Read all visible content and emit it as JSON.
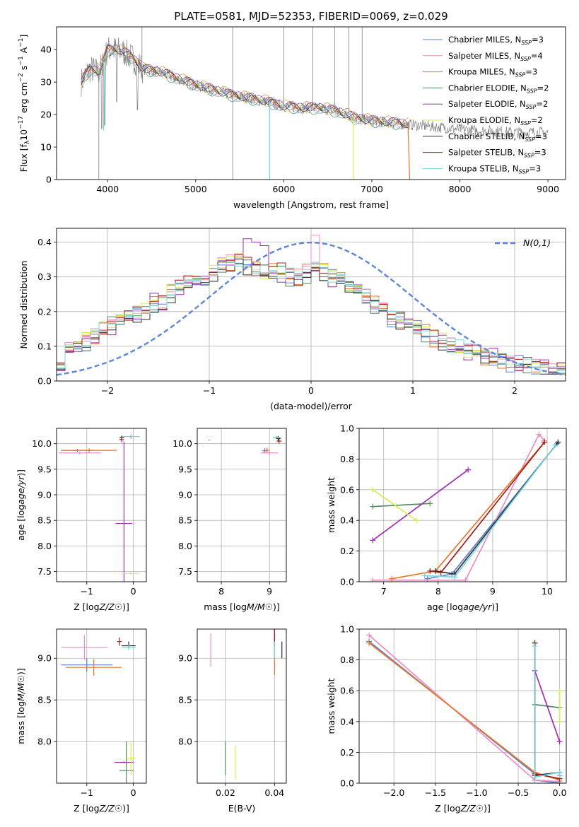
{
  "figure": {
    "title": "PLATE=0581, MJD=52353, FIBERID=0069, z=0.029",
    "models": [
      {
        "label": "Chabrier MILES, N",
        "sub": "SSP",
        "eq": "=3",
        "color": "#5b7fd6"
      },
      {
        "label": "Salpeter MILES, N",
        "sub": "SSP",
        "eq": "=4",
        "color": "#e88ec1"
      },
      {
        "label": "Kroupa MILES, N",
        "sub": "SSP",
        "eq": "=3",
        "color": "#c8892b"
      },
      {
        "label": "Chabrier ELODIE, N",
        "sub": "SSP",
        "eq": "=2",
        "color": "#4d8a5c"
      },
      {
        "label": "Salpeter ELODIE, N",
        "sub": "SSP",
        "eq": "=2",
        "color": "#9c2fb3"
      },
      {
        "label": "Kroupa ELODIE, N",
        "sub": "SSP",
        "eq": "=2",
        "color": "#d8ec4b"
      },
      {
        "label": "Chabrier STELIB, N",
        "sub": "SSP",
        "eq": "=3",
        "color": "#2e2e2e"
      },
      {
        "label": "Salpeter STELIB, N",
        "sub": "SSP",
        "eq": "=3",
        "color": "#a31a1a"
      },
      {
        "label": "Kroupa STELIB, N",
        "sub": "SSP",
        "eq": "=3",
        "color": "#74d6d6"
      }
    ],
    "data_color": "#808080",
    "orange": "#e8762b"
  },
  "chart_data": [
    {
      "id": "spectrum",
      "type": "line",
      "xlabel": "wavelength [Angstrom, rest frame]",
      "ylabel": "Flux [f_λ 10^-17 erg cm^-2 s^-1 A^-1]",
      "xlim": [
        3420,
        9200
      ],
      "ylim": [
        0,
        47
      ],
      "xticks": [
        4000,
        5000,
        6000,
        7000,
        8000,
        9000
      ],
      "yticks": [
        0,
        10,
        20,
        30,
        40
      ],
      "continuum_x": [
        3700,
        3800,
        3900,
        3950,
        4000,
        4100,
        4200,
        4300,
        4400,
        4600,
        4800,
        5000,
        5200,
        5400,
        5600,
        5800,
        6000,
        6200,
        6400,
        6600,
        6800,
        7000,
        7200,
        7400,
        7600,
        7800,
        8000,
        8200,
        8400,
        8600,
        8800,
        9000
      ],
      "continuum_y": [
        30,
        34,
        33,
        36,
        40,
        40,
        39,
        37,
        34,
        33,
        31,
        29,
        27.5,
        26,
        25,
        24,
        22.5,
        22,
        22,
        21,
        19,
        18,
        17.5,
        17,
        16.5,
        16,
        15.5,
        15,
        15,
        14.5,
        14.5,
        14.5
      ]
    },
    {
      "id": "residuals",
      "type": "line",
      "xlabel": "(data-model)/error",
      "ylabel": "Normed distribution",
      "xlim": [
        -2.5,
        2.5
      ],
      "ylim": [
        0,
        0.44
      ],
      "xticks": [
        -2,
        -1,
        0,
        1,
        2
      ],
      "yticks": [
        0.0,
        0.1,
        0.2,
        0.3,
        0.4
      ],
      "gaussian_label": "N(0,1)",
      "hist_edges": [
        -2.5,
        2.5
      ],
      "hist_base": [
        0.06,
        0.09,
        0.1,
        0.11,
        0.13,
        0.15,
        0.16,
        0.17,
        0.18,
        0.19,
        0.2,
        0.22,
        0.23,
        0.25,
        0.27,
        0.28,
        0.29,
        0.3,
        0.31,
        0.33,
        0.34,
        0.34,
        0.33,
        0.32,
        0.31,
        0.31,
        0.31,
        0.3,
        0.3,
        0.31,
        0.33,
        0.31,
        0.3,
        0.29,
        0.27,
        0.26,
        0.24,
        0.22,
        0.2,
        0.18,
        0.17,
        0.16,
        0.15,
        0.14,
        0.12,
        0.11,
        0.1,
        0.09,
        0.08,
        0.08,
        0.07,
        0.06,
        0.06,
        0.05,
        0.05,
        0.04,
        0.04,
        0.04,
        0.03,
        0.03
      ]
    },
    {
      "id": "Z-age",
      "type": "scatter",
      "xlabel": "Z [log10(Z/Z☉)]",
      "ylabel": "age [log10(age/yr)]",
      "xlim": [
        -1.65,
        0.28
      ],
      "ylim": [
        7.3,
        10.3
      ],
      "xticks": [
        -1,
        0
      ],
      "yticks": [
        7.5,
        8.0,
        8.5,
        9.0,
        9.5,
        10.0
      ],
      "points": [
        {
          "m": 0,
          "x": -1.2,
          "y": 9.87,
          "xe": 0.35,
          "ye": 0.03
        },
        {
          "m": 1,
          "x": -1.15,
          "y": 9.82,
          "xe": 0.45,
          "ye": 0.03
        },
        {
          "m": 2,
          "x": -0.95,
          "y": 9.87,
          "xe": 0.6,
          "ye": 0.04
        },
        {
          "m": 3,
          "x": -0.05,
          "y": 10.14,
          "xe": 0.18,
          "ye": 0.04
        },
        {
          "m": 4,
          "x": -0.2,
          "y": 8.44,
          "xe": 0.18,
          "ye": 1.6
        },
        {
          "m": 5,
          "x": -0.05,
          "y": 7.46,
          "xe": 0.18,
          "ye": 0.02
        },
        {
          "m": 6,
          "x": -0.25,
          "y": 10.12,
          "xe": 0.05,
          "ye": 0.04
        },
        {
          "m": 7,
          "x": -0.25,
          "y": 10.08,
          "xe": 0.05,
          "ye": 0.05
        },
        {
          "m": 8,
          "x": -0.05,
          "y": 10.14,
          "xe": 0.18,
          "ye": 0.02
        }
      ]
    },
    {
      "id": "mass-age",
      "type": "scatter",
      "xlabel": "mass [log10(M/M☉)]",
      "ylabel": "",
      "xlim": [
        7.5,
        9.35
      ],
      "ylim": [
        7.3,
        10.3
      ],
      "xticks": [
        8,
        9
      ],
      "yticks": [
        7.5,
        8.0,
        8.5,
        9.0,
        9.5,
        10.0
      ],
      "points": [
        {
          "m": 0,
          "x": 8.9,
          "y": 9.86,
          "xe": 0.05,
          "ye": 0.05
        },
        {
          "m": 1,
          "x": 9.0,
          "y": 9.82,
          "xe": 0.18,
          "ye": 0.04
        },
        {
          "m": 2,
          "x": 8.95,
          "y": 9.87,
          "xe": 0.05,
          "ye": 0.05
        },
        {
          "m": 3,
          "x": 9.15,
          "y": 10.12,
          "xe": 0.08,
          "ye": 0.03
        },
        {
          "m": 4,
          "x": 7.75,
          "y": 10.07,
          "xe": 0.01,
          "ye": 0.0
        },
        {
          "m": 5,
          "x": 7.63,
          "y": 9.95,
          "xe": 0.01,
          "ye": 0.0
        },
        {
          "m": 6,
          "x": 9.18,
          "y": 10.1,
          "xe": 0.05,
          "ye": 0.05
        },
        {
          "m": 7,
          "x": 9.2,
          "y": 10.05,
          "xe": 0.05,
          "ye": 0.05
        },
        {
          "m": 8,
          "x": 9.15,
          "y": 10.12,
          "xe": 0.08,
          "ye": 0.02
        }
      ]
    },
    {
      "id": "weight-age",
      "type": "line",
      "xlabel": "age [log10(age/yr)]",
      "ylabel": "mass weight",
      "xlim": [
        6.55,
        10.35
      ],
      "ylim": [
        0,
        1
      ],
      "xticks": [
        7,
        8,
        9,
        10
      ],
      "yticks": [
        0.0,
        0.2,
        0.4,
        0.6,
        0.8,
        1.0
      ],
      "series": [
        {
          "m": 0,
          "x": [
            7.8,
            8.25,
            10.18
          ],
          "y": [
            0.02,
            0.05,
            0.9
          ]
        },
        {
          "m": 1,
          "x": [
            6.8,
            8.5,
            9.85,
            9.95
          ],
          "y": [
            0.01,
            0.01,
            0.96,
            0.92
          ]
        },
        {
          "m": 2,
          "x": [
            7.15,
            7.95,
            9.95
          ],
          "y": [
            0.02,
            0.07,
            0.91
          ]
        },
        {
          "m": 3,
          "x": [
            6.8,
            7.85
          ],
          "y": [
            0.49,
            0.51
          ]
        },
        {
          "m": 4,
          "x": [
            6.8,
            8.55
          ],
          "y": [
            0.27,
            0.73
          ]
        },
        {
          "m": 5,
          "x": [
            6.8,
            7.6
          ],
          "y": [
            0.6,
            0.4
          ]
        },
        {
          "m": 6,
          "x": [
            7.95,
            8.3,
            10.2
          ],
          "y": [
            0.07,
            0.05,
            0.91
          ]
        },
        {
          "m": 7,
          "x": [
            7.85,
            8.05,
            9.95
          ],
          "y": [
            0.07,
            0.06,
            0.91
          ]
        },
        {
          "m": 8,
          "x": [
            7.75,
            8.3,
            10.15
          ],
          "y": [
            0.04,
            0.03,
            0.89
          ]
        }
      ]
    },
    {
      "id": "Z-mass",
      "type": "scatter",
      "xlabel": "Z [log10(Z/Z☉)]",
      "ylabel": "mass [log10(M/M☉)]",
      "xlim": [
        -1.65,
        0.28
      ],
      "ylim": [
        7.5,
        9.35
      ],
      "xticks": [
        -1,
        0
      ],
      "yticks": [
        8.0,
        8.5,
        9.0
      ],
      "points": [
        {
          "m": 0,
          "x": -1.0,
          "y": 8.92,
          "xe": 0.55,
          "ye": 0.08
        },
        {
          "m": 1,
          "x": -1.05,
          "y": 9.13,
          "xe": 0.5,
          "ye": 0.15
        },
        {
          "m": 2,
          "x": -0.85,
          "y": 8.89,
          "xe": 0.6,
          "ye": 0.1
        },
        {
          "m": 3,
          "x": -0.15,
          "y": 7.65,
          "xe": 0.15,
          "ye": 0.35
        },
        {
          "m": 4,
          "x": -0.2,
          "y": 7.75,
          "xe": 0.2,
          "ye": 0.01
        },
        {
          "m": 5,
          "x": -0.05,
          "y": 7.8,
          "xe": 0.1,
          "ye": 0.2
        },
        {
          "m": 6,
          "x": -0.1,
          "y": 9.15,
          "xe": 0.15,
          "ye": 0.05
        },
        {
          "m": 7,
          "x": -0.3,
          "y": 9.2,
          "xe": 0.05,
          "ye": 0.05
        },
        {
          "m": 8,
          "x": -0.1,
          "y": 9.13,
          "xe": 0.15,
          "ye": 0.03
        }
      ]
    },
    {
      "id": "ebv-mass",
      "type": "scatter",
      "xlabel": "E(B-V)",
      "ylabel": "",
      "xlim": [
        0.0085,
        0.0448
      ],
      "ylim": [
        7.5,
        9.35
      ],
      "xticks": [
        0.02,
        0.04
      ],
      "yticks": [
        8.0,
        8.5,
        9.0
      ],
      "points": [
        {
          "m": 0,
          "x": 0.04,
          "y": 9.2,
          "xe": 0,
          "ye": 0.1
        },
        {
          "m": 1,
          "x": 0.014,
          "y": 9.1,
          "xe": 0,
          "ye": 0.2
        },
        {
          "m": 2,
          "x": 0.04,
          "y": 8.95,
          "xe": 0,
          "ye": 0.15
        },
        {
          "m": 3,
          "x": 0.02,
          "y": 7.8,
          "xe": 0,
          "ye": 0.2
        },
        {
          "m": 4,
          "x": 0.04,
          "y": 9.25,
          "xe": 0,
          "ye": 0.1
        },
        {
          "m": 5,
          "x": 0.024,
          "y": 7.75,
          "xe": 0,
          "ye": 0.2
        },
        {
          "m": 6,
          "x": 0.043,
          "y": 9.1,
          "xe": 0,
          "ye": 0.1
        },
        {
          "m": 7,
          "x": 0.04,
          "y": 9.25,
          "xe": 0,
          "ye": 0.1
        },
        {
          "m": 8,
          "x": 0.04,
          "y": 9.1,
          "xe": 0,
          "ye": 0.1
        }
      ]
    },
    {
      "id": "weight-Z",
      "type": "line",
      "xlabel": "Z [log10(Z/Z☉)]",
      "ylabel": "mass weight",
      "xlim": [
        -2.42,
        0.08
      ],
      "ylim": [
        0,
        1
      ],
      "xticks": [
        -2.0,
        -1.5,
        -1.0,
        -0.5,
        0.0
      ],
      "yticks": [
        0.0,
        0.2,
        0.4,
        0.6,
        0.8,
        1.0
      ],
      "series": [
        {
          "m": 0,
          "x": [
            -2.3,
            -0.3,
            -0.3,
            0.0
          ],
          "y": [
            0.92,
            0.06,
            0.02,
            0.0
          ]
        },
        {
          "m": 1,
          "x": [
            -2.3,
            -0.3,
            -0.3,
            0.0
          ],
          "y": [
            0.96,
            0.02,
            0.02,
            0.01
          ]
        },
        {
          "m": 2,
          "x": [
            -2.3,
            -0.3,
            0.0
          ],
          "y": [
            0.91,
            0.07,
            0.02
          ]
        },
        {
          "m": 3,
          "x": [
            -0.3,
            0.0
          ],
          "y": [
            0.51,
            0.49
          ]
        },
        {
          "m": 4,
          "x": [
            -0.3,
            0.0
          ],
          "y": [
            0.73,
            0.27
          ]
        },
        {
          "m": 5,
          "x": [
            0.0,
            0.0
          ],
          "y": [
            0.6,
            0.4
          ]
        },
        {
          "m": 6,
          "x": [
            -0.3,
            -0.3,
            0.0,
            0.0
          ],
          "y": [
            0.91,
            0.05,
            0.07,
            0.05
          ]
        },
        {
          "m": 7,
          "x": [
            -0.3,
            -0.3,
            0.0
          ],
          "y": [
            0.91,
            0.06,
            0.03
          ]
        },
        {
          "m": 8,
          "x": [
            -0.3,
            -0.3,
            0.0,
            0.0
          ],
          "y": [
            0.89,
            0.04,
            0.07,
            0.05
          ]
        }
      ]
    }
  ]
}
